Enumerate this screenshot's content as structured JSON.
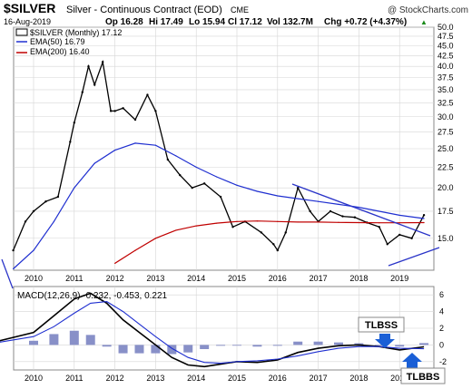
{
  "header": {
    "symbol": "$SILVER",
    "description": "Silver - Continuous Contract (EOD)",
    "exchange": "CME",
    "watermark": "@ StockCharts.com",
    "date": "16-Aug-2019",
    "open": "Op 16.28",
    "high": "Hi 17.49",
    "low": "Lo 15.94",
    "close": "Cl 17.12",
    "volume": "Vol 132.7M",
    "change": "Chg +0.72 (+4.37%)",
    "change_arrow": "▲"
  },
  "legend": [
    {
      "label": "$SILVER (Monthly) 17.12",
      "color": "#000000"
    },
    {
      "label": "EMA(50) 16.79",
      "color": "#1f2fd0"
    },
    {
      "label": "EMA(200) 16.40",
      "color": "#c00000"
    }
  ],
  "macd_legend": {
    "label": "MACD(12,26,9) -0.232, -0.453, 0.221"
  },
  "annotations": {
    "tlbss": "TLBSS",
    "tlbbs": "TLBBS"
  },
  "colors": {
    "price": "#000000",
    "ema50": "#1f2fd0",
    "ema200": "#c00000",
    "trendline": "#2a34c8",
    "histogram": "#8890c8",
    "grid": "#d6d6d6",
    "annotation_arrow": "#1a5fd6"
  },
  "chart_data": [
    {
      "type": "line",
      "panel": "price",
      "ylim": [
        12.5,
        50
      ],
      "y_scale": "log",
      "grid": true,
      "x_ticks": [
        "2010",
        "2011",
        "2012",
        "2013",
        "2014",
        "2015",
        "2016",
        "2017",
        "2018",
        "2019"
      ],
      "y_ticks": [
        15.0,
        17.5,
        20.0,
        22.5,
        25.0,
        27.5,
        30.0,
        32.5,
        35.0,
        37.5,
        40.0,
        42.5,
        45.0,
        47.5,
        50.0
      ],
      "series": [
        {
          "name": "$SILVER (Monthly)",
          "x": [
            2009.5,
            2009.8,
            2010.0,
            2010.3,
            2010.6,
            2010.9,
            2011.0,
            2011.2,
            2011.35,
            2011.5,
            2011.7,
            2011.9,
            2012.0,
            2012.2,
            2012.5,
            2012.8,
            2013.0,
            2013.3,
            2013.6,
            2013.9,
            2014.2,
            2014.6,
            2014.9,
            2015.2,
            2015.6,
            2015.9,
            2016.0,
            2016.2,
            2016.5,
            2016.8,
            2017.0,
            2017.3,
            2017.6,
            2017.9,
            2018.2,
            2018.5,
            2018.7,
            2019.0,
            2019.3,
            2019.6
          ],
          "values": [
            14.0,
            16.5,
            17.5,
            18.5,
            19.0,
            26.0,
            29.0,
            34.5,
            40.0,
            36.0,
            41.0,
            31.0,
            31.0,
            31.5,
            29.5,
            34.0,
            31.0,
            23.5,
            21.5,
            20.0,
            20.5,
            19.0,
            16.0,
            16.5,
            15.5,
            14.5,
            14.0,
            15.5,
            20.0,
            17.5,
            16.5,
            17.5,
            17.0,
            16.9,
            16.4,
            16.0,
            14.5,
            15.3,
            15.0,
            17.12
          ]
        },
        {
          "name": "EMA(50)",
          "x": [
            2009.5,
            2010.0,
            2010.5,
            2011.0,
            2011.5,
            2012.0,
            2012.5,
            2013.0,
            2013.5,
            2014.0,
            2014.5,
            2015.0,
            2015.5,
            2016.0,
            2016.5,
            2017.0,
            2017.5,
            2018.0,
            2018.5,
            2019.0,
            2019.6
          ],
          "values": [
            12.6,
            14.0,
            16.5,
            20.0,
            23.0,
            24.8,
            25.8,
            25.5,
            24.0,
            22.5,
            21.3,
            20.3,
            19.6,
            19.1,
            18.8,
            18.5,
            18.2,
            17.9,
            17.5,
            17.1,
            16.79
          ]
        },
        {
          "name": "EMA(200)",
          "x": [
            2012.0,
            2012.5,
            2013.0,
            2013.5,
            2014.0,
            2014.5,
            2015.0,
            2015.5,
            2016.0,
            2016.5,
            2017.0,
            2017.5,
            2018.0,
            2018.5,
            2019.0,
            2019.6
          ],
          "values": [
            13.0,
            14.0,
            15.0,
            15.7,
            16.1,
            16.35,
            16.5,
            16.55,
            16.5,
            16.45,
            16.45,
            16.42,
            16.4,
            16.38,
            16.38,
            16.4
          ]
        }
      ]
    },
    {
      "type": "line",
      "panel": "macd",
      "ylim": [
        -3,
        7
      ],
      "y_ticks": [
        -2,
        0,
        2,
        4,
        6
      ],
      "x_ticks": [
        "2010",
        "2011",
        "2012",
        "2013",
        "2014",
        "2015",
        "2016",
        "2017",
        "2018",
        "2019"
      ],
      "series": [
        {
          "name": "MACD",
          "x": [
            2009.0,
            2010.0,
            2010.5,
            2011.0,
            2011.4,
            2011.8,
            2012.2,
            2012.6,
            2013.0,
            2013.4,
            2013.8,
            2014.2,
            2014.6,
            2015.0,
            2015.5,
            2016.0,
            2016.5,
            2017.0,
            2017.5,
            2018.0,
            2018.5,
            2019.0,
            2019.6
          ],
          "values": [
            0.3,
            1.5,
            3.5,
            5.5,
            6.2,
            5.0,
            3.0,
            1.5,
            0.0,
            -1.5,
            -2.4,
            -2.6,
            -2.3,
            -2.0,
            -2.1,
            -1.8,
            -0.9,
            -0.4,
            -0.1,
            0.0,
            -0.2,
            -0.6,
            -0.232
          ]
        },
        {
          "name": "Signal",
          "x": [
            2009.0,
            2010.0,
            2010.5,
            2011.0,
            2011.4,
            2011.8,
            2012.2,
            2012.6,
            2013.0,
            2013.4,
            2013.8,
            2014.2,
            2014.6,
            2015.0,
            2015.5,
            2016.0,
            2016.5,
            2017.0,
            2017.5,
            2018.0,
            2018.5,
            2019.0,
            2019.6
          ],
          "values": [
            0.2,
            1.0,
            2.2,
            3.8,
            5.0,
            5.2,
            4.0,
            2.5,
            1.0,
            -0.4,
            -1.5,
            -2.1,
            -2.2,
            -2.0,
            -1.9,
            -1.7,
            -1.3,
            -0.8,
            -0.4,
            -0.2,
            -0.2,
            -0.4,
            -0.453
          ]
        },
        {
          "name": "Histogram",
          "type": "bar",
          "x": [
            2009.0,
            2010.0,
            2010.5,
            2011.0,
            2011.4,
            2011.8,
            2012.2,
            2012.6,
            2013.0,
            2013.4,
            2013.8,
            2014.2,
            2014.6,
            2015.0,
            2015.5,
            2016.0,
            2016.5,
            2017.0,
            2017.5,
            2018.0,
            2018.5,
            2019.0,
            2019.6
          ],
          "values": [
            0.1,
            0.5,
            1.3,
            1.7,
            1.2,
            -0.2,
            -1.0,
            -1.0,
            -1.0,
            -1.1,
            -0.9,
            -0.5,
            -0.1,
            0.0,
            -0.2,
            -0.1,
            0.4,
            0.4,
            0.3,
            0.2,
            0.0,
            -0.2,
            0.221
          ]
        }
      ]
    }
  ]
}
